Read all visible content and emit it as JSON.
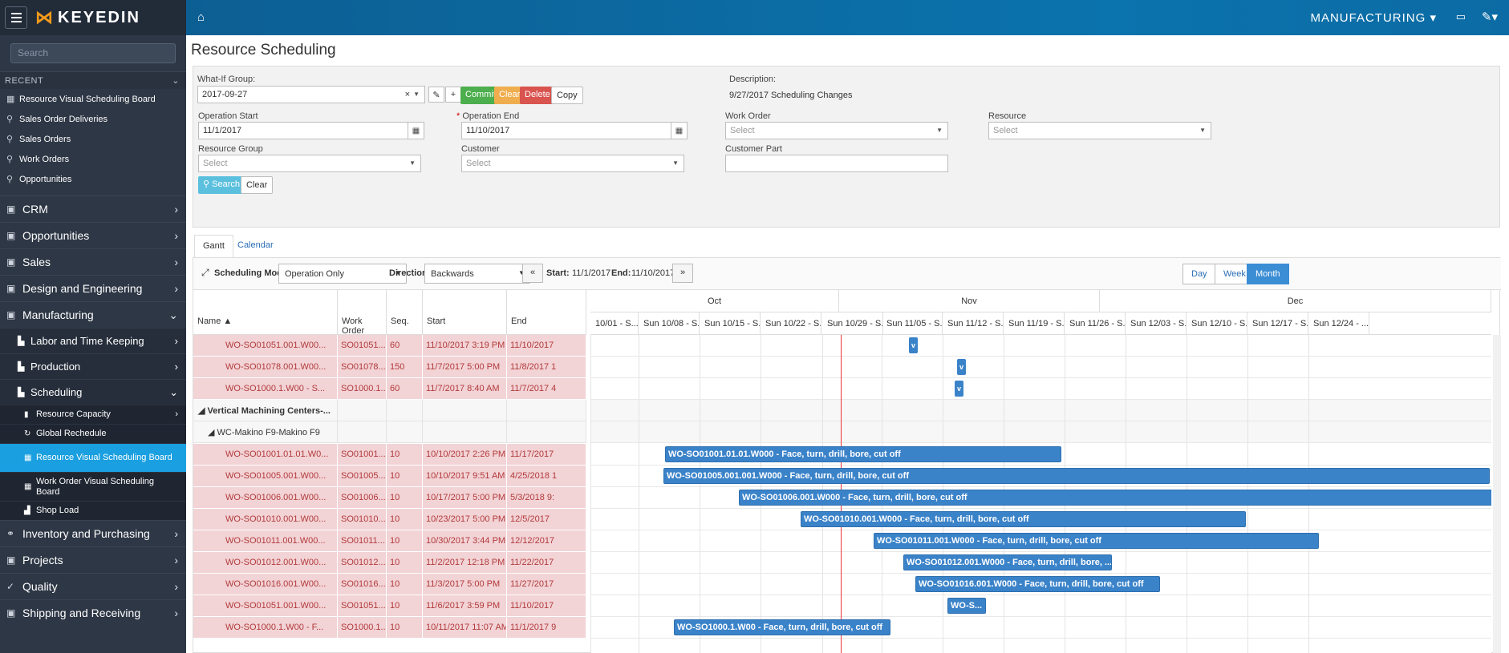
{
  "app": {
    "logo": "KEYEDIN"
  },
  "sidebar": {
    "search_placeholder": "Search",
    "recent_header": "RECENT",
    "recent": [
      {
        "label": "Resource Visual Scheduling Board",
        "icon": "calendar-icon"
      },
      {
        "label": "Sales Order Deliveries",
        "icon": "search-icon"
      },
      {
        "label": "Sales Orders",
        "icon": "search-icon"
      },
      {
        "label": "Work Orders",
        "icon": "search-icon"
      },
      {
        "label": "Opportunities",
        "icon": "search-icon"
      }
    ],
    "menu": [
      {
        "label": "CRM",
        "icon": "briefcase-icon",
        "chevron": "›"
      },
      {
        "label": "Opportunities",
        "icon": "briefcase-icon",
        "chevron": "›"
      },
      {
        "label": "Sales",
        "icon": "briefcase-icon",
        "chevron": "›"
      },
      {
        "label": "Design and Engineering",
        "icon": "briefcase-icon",
        "chevron": "›"
      },
      {
        "label": "Manufacturing",
        "icon": "briefcase-icon",
        "chevron": "⌄"
      }
    ],
    "manufacturing_sub": [
      {
        "label": "Labor and Time Keeping",
        "chevron": "›"
      },
      {
        "label": "Production",
        "chevron": "›"
      },
      {
        "label": "Scheduling",
        "chevron": "⌄"
      }
    ],
    "scheduling_sub": [
      {
        "label": "Resource Capacity",
        "chevron": "›"
      },
      {
        "label": "Global Rechedule",
        "chevron": ""
      },
      {
        "label": "Resource Visual Scheduling Board",
        "chevron": ""
      },
      {
        "label": "Work Order Visual Scheduling Board",
        "chevron": ""
      },
      {
        "label": "Shop Load",
        "chevron": ""
      }
    ],
    "menu2": [
      {
        "label": "Inventory and Purchasing",
        "chevron": "›"
      },
      {
        "label": "Projects",
        "chevron": "›"
      },
      {
        "label": "Quality",
        "chevron": "›"
      },
      {
        "label": "Shipping and Receiving",
        "chevron": "›"
      }
    ]
  },
  "topbar": {
    "module": "MANUFACTURING"
  },
  "page": {
    "title": "Resource Scheduling"
  },
  "filters": {
    "whatif_label": "What-If Group:",
    "whatif_value": "2017-09-27",
    "commit": "Commit",
    "clear": "Clear",
    "delete": "Delete",
    "copy": "Copy",
    "description_label": "Description:",
    "description_value": "9/27/2017 Scheduling Changes",
    "op_start_label": "Operation Start",
    "op_start_value": "11/1/2017",
    "op_end_label": "Operation End",
    "op_end_value": "11/10/2017",
    "work_order_label": "Work Order",
    "resource_label": "Resource",
    "resource_group_label": "Resource Group",
    "customer_label": "Customer",
    "customer_part_label": "Customer Part",
    "select": "Select",
    "search": "Search",
    "clear2": "Clear"
  },
  "tabs": [
    "Gantt",
    "Calendar"
  ],
  "gantt_toolbar": {
    "mode_label": "Scheduling Mode:",
    "mode_value": "Operation Only",
    "direction_label": "Direction:",
    "direction_value": "Backwards",
    "prev": "«",
    "next": "»",
    "start_label": "Start:",
    "start_value": "11/1/2017",
    "end_label": "End:",
    "end_value": "11/10/2017",
    "views": [
      "Day",
      "Week",
      "Month"
    ],
    "active_view": "Month"
  },
  "grid": {
    "columns": [
      "Name ▲",
      "Work Order",
      "Seq.",
      "Start",
      "End"
    ],
    "rows": [
      {
        "type": "task",
        "name": "WO-SO01051.001.W00...",
        "wo": "SO01051....",
        "seq": "60",
        "start": "11/10/2017 3:19 PM",
        "end": "11/10/2017"
      },
      {
        "type": "task",
        "name": "WO-SO01078.001.W00...",
        "wo": "SO01078....",
        "seq": "150",
        "start": "11/7/2017 5:00 PM",
        "end": "11/8/2017 1"
      },
      {
        "type": "task",
        "name": "WO-SO1000.1.W00 - S...",
        "wo": "SO1000.1....",
        "seq": "60",
        "start": "11/7/2017 8:40 AM",
        "end": "11/7/2017 4"
      },
      {
        "type": "group",
        "name": "◢ Vertical Machining Centers-..."
      },
      {
        "type": "group",
        "name": "◢ WC-Makino F9-Makino F9"
      },
      {
        "type": "task",
        "name": "WO-SO01001.01.01.W0...",
        "wo": "SO01001....",
        "seq": "10",
        "start": "10/10/2017 2:26 PM",
        "end": "11/17/2017"
      },
      {
        "type": "task",
        "name": "WO-SO01005.001.W00...",
        "wo": "SO01005....",
        "seq": "10",
        "start": "10/10/2017 9:51 AM",
        "end": "4/25/2018 1"
      },
      {
        "type": "task",
        "name": "WO-SO01006.001.W00...",
        "wo": "SO01006....",
        "seq": "10",
        "start": "10/17/2017 5:00 PM",
        "end": "5/3/2018 9:"
      },
      {
        "type": "task",
        "name": "WO-SO01010.001.W00...",
        "wo": "SO01010....",
        "seq": "10",
        "start": "10/23/2017 5:00 PM",
        "end": "12/5/2017"
      },
      {
        "type": "task",
        "name": "WO-SO01011.001.W00...",
        "wo": "SO01011....",
        "seq": "10",
        "start": "10/30/2017 3:44 PM",
        "end": "12/12/2017"
      },
      {
        "type": "task",
        "name": "WO-SO01012.001.W00...",
        "wo": "SO01012....",
        "seq": "10",
        "start": "11/2/2017 12:18 PM",
        "end": "11/22/2017"
      },
      {
        "type": "task",
        "name": "WO-SO01016.001.W00...",
        "wo": "SO01016....",
        "seq": "10",
        "start": "11/3/2017 5:00 PM",
        "end": "11/27/2017"
      },
      {
        "type": "task",
        "name": "WO-SO01051.001.W00...",
        "wo": "SO01051....",
        "seq": "10",
        "start": "11/6/2017 3:59 PM",
        "end": "11/10/2017"
      },
      {
        "type": "task",
        "name": "WO-SO1000.1.W00 - F...",
        "wo": "SO1000.1....",
        "seq": "10",
        "start": "10/11/2017 11:07 AM",
        "end": "11/1/2017 9"
      }
    ]
  },
  "timeline": {
    "months": [
      "Oct",
      "Nov",
      "Dec"
    ],
    "weeks": [
      "10/01 - S...",
      "Sun 10/08 - S...",
      "Sun 10/15 - S...",
      "Sun 10/22 - S...",
      "Sun 10/29 - S...",
      "Sun 11/05 - S...",
      "Sun 11/12 - S...",
      "Sun 11/19 - S...",
      "Sun 11/26 - S...",
      "Sun 12/03 - S...",
      "Sun 12/10 - S...",
      "Sun 12/17 - S...",
      "Sun 12/24 - ..."
    ],
    "bars": [
      {
        "row": 0,
        "label": "v",
        "mini": true
      },
      {
        "row": 1,
        "label": "v",
        "mini": true
      },
      {
        "row": 2,
        "label": "v",
        "mini": true
      },
      {
        "row": 5,
        "label": "WO-SO01001.01.01.W000 - Face, turn, drill, bore, cut off"
      },
      {
        "row": 6,
        "label": "WO-SO01005.001.001.W000 - Face, turn, drill, bore, cut off"
      },
      {
        "row": 7,
        "label": "WO-SO01006.001.W000 - Face, turn, drill, bore, cut off"
      },
      {
        "row": 8,
        "label": "WO-SO01010.001.W000 - Face, turn, drill, bore, cut off"
      },
      {
        "row": 9,
        "label": "WO-SO01011.001.W000 - Face, turn, drill, bore, cut off"
      },
      {
        "row": 10,
        "label": "WO-SO01012.001.W000 - Face, turn, drill, bore, ..."
      },
      {
        "row": 11,
        "label": "WO-SO01016.001.W000 - Face, turn, drill, bore, cut off"
      },
      {
        "row": 12,
        "label": "WO-S..."
      },
      {
        "row": 13,
        "label": "WO-SO1000.1.W00 - Face, turn, drill, bore, cut off"
      }
    ]
  },
  "colors": {
    "sidebar": "#2e3745",
    "active": "#1a9fe0",
    "topbar": "#0b73ad",
    "bar": "#3b83c9",
    "task_row": "#f2d3d6",
    "today_line": "#e33333"
  }
}
